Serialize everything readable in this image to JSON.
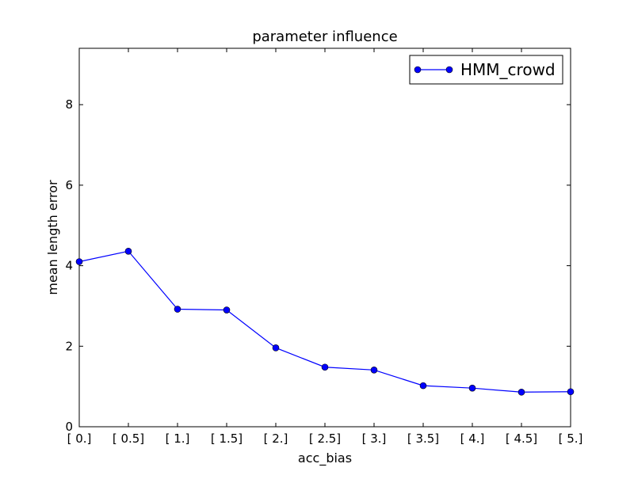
{
  "chart_data": {
    "type": "line",
    "title": "parameter influence",
    "xlabel": "acc_bias",
    "ylabel": "mean length error",
    "categories": [
      "[ 0.]",
      "[ 0.5]",
      "[ 1.]",
      "[ 1.5]",
      "[ 2.]",
      "[ 2.5]",
      "[ 3.]",
      "[ 3.5]",
      "[ 4.]",
      "[ 4.5]",
      "[ 5.]"
    ],
    "yticks": [
      "0",
      "2",
      "4",
      "6",
      "8"
    ],
    "ylim": [
      0,
      9.4
    ],
    "grid": false,
    "legend": "top-right",
    "series": [
      {
        "name": "HMM_crowd",
        "color": "#0000ff",
        "marker": "circle",
        "values": [
          4.1,
          4.36,
          2.92,
          2.9,
          1.96,
          1.48,
          1.41,
          1.02,
          0.96,
          0.86,
          0.87
        ]
      }
    ]
  }
}
